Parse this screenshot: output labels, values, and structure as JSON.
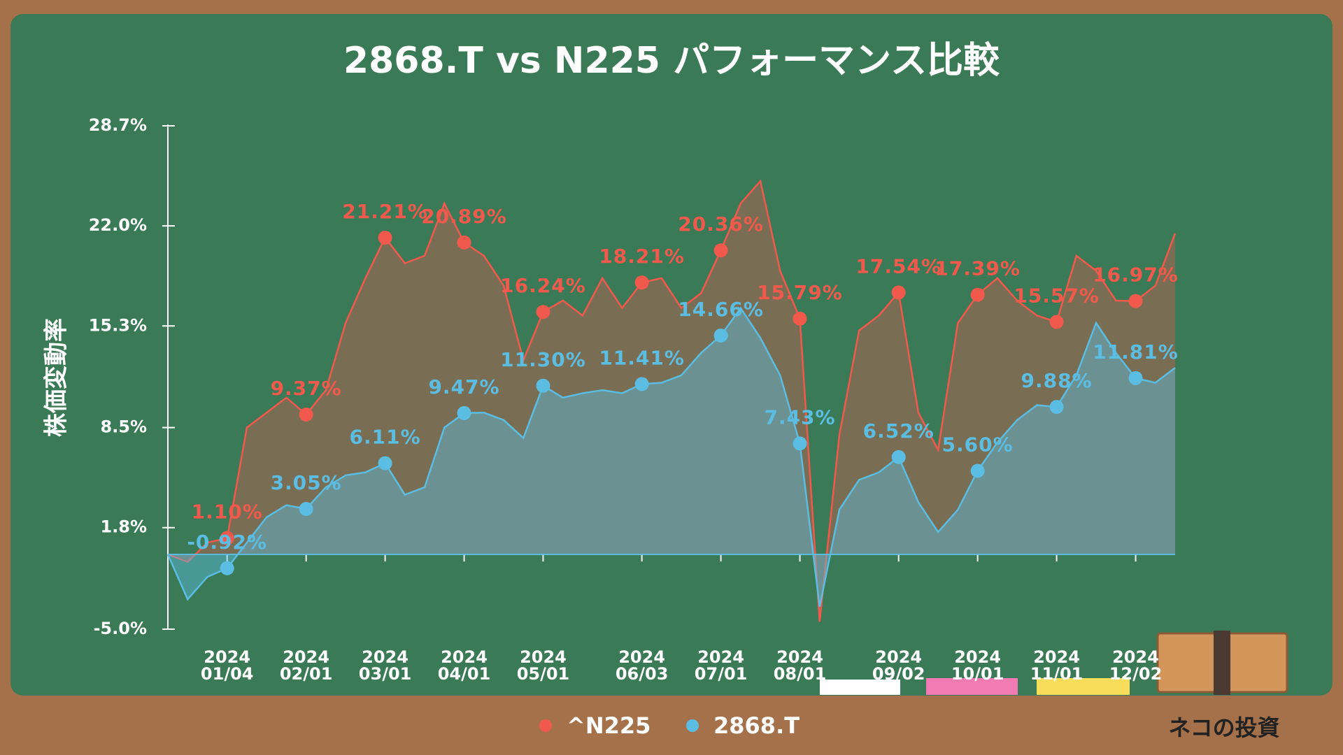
{
  "chart_data": {
    "type": "line",
    "title": "2868.T vs N225 パフォーマンス比較",
    "y_label": "株価変動率",
    "area": true,
    "categories": [
      null,
      null,
      null,
      "2024\n01/04",
      null,
      null,
      null,
      "2024\n02/01",
      null,
      null,
      null,
      "2024\n03/01",
      null,
      null,
      null,
      "2024\n04/01",
      null,
      null,
      null,
      "2024\n05/01",
      null,
      null,
      null,
      null,
      "2024\n06/03",
      null,
      null,
      null,
      "2024\n07/01",
      null,
      null,
      null,
      "2024\n08/01",
      null,
      null,
      null,
      null,
      "2024\n09/02",
      null,
      null,
      null,
      "2024\n10/01",
      null,
      null,
      null,
      "2024\n11/01",
      null,
      null,
      null,
      "2024\n12/02",
      null,
      null
    ],
    "series": [
      {
        "name": "^N225",
        "color": "#f2594d",
        "values": [
          0.0,
          -0.5,
          0.8,
          1.1,
          8.5,
          9.5,
          10.5,
          9.37,
          11.0,
          15.5,
          18.5,
          21.21,
          19.5,
          20.0,
          23.5,
          20.89,
          20.0,
          18.0,
          13.0,
          16.24,
          17.0,
          16.0,
          18.5,
          16.5,
          18.21,
          18.5,
          16.5,
          17.5,
          20.36,
          23.5,
          25.0,
          19.0,
          15.79,
          -4.5,
          8.0,
          15.0,
          16.0,
          17.54,
          9.5,
          7.0,
          15.5,
          17.39,
          18.5,
          17.0,
          16.0,
          15.57,
          20.0,
          19.0,
          17.0,
          16.97,
          18.0,
          21.5
        ],
        "value_labels": [
          null,
          null,
          null,
          "1.10%",
          null,
          null,
          null,
          "9.37%",
          null,
          null,
          null,
          "21.21%",
          null,
          null,
          null,
          "20.89%",
          null,
          null,
          null,
          "16.24%",
          null,
          null,
          null,
          null,
          "18.21%",
          null,
          null,
          null,
          "20.36%",
          null,
          null,
          null,
          "15.79%",
          null,
          null,
          null,
          null,
          "17.54%",
          null,
          null,
          null,
          "17.39%",
          null,
          null,
          null,
          "15.57%",
          null,
          null,
          null,
          "16.97%",
          null,
          null
        ]
      },
      {
        "name": "2868.T",
        "color": "#5bbde2",
        "values": [
          0.0,
          -3.0,
          -1.5,
          -0.92,
          0.8,
          2.5,
          3.3,
          3.05,
          4.5,
          5.3,
          5.5,
          6.11,
          4.0,
          4.5,
          8.5,
          9.47,
          9.5,
          9.0,
          7.8,
          11.3,
          10.5,
          10.8,
          11.0,
          10.8,
          11.41,
          11.5,
          12.0,
          13.5,
          14.66,
          16.5,
          14.5,
          12.0,
          7.43,
          -3.5,
          3.0,
          5.0,
          5.5,
          6.52,
          3.5,
          1.5,
          3.0,
          5.6,
          7.5,
          9.0,
          10.0,
          9.88,
          12.0,
          15.5,
          13.5,
          11.81,
          11.5,
          12.5
        ],
        "value_labels": [
          null,
          null,
          null,
          "-0.92%",
          null,
          null,
          null,
          "3.05%",
          null,
          null,
          null,
          "6.11%",
          null,
          null,
          null,
          "9.47%",
          null,
          null,
          null,
          "11.30%",
          null,
          null,
          null,
          null,
          "11.41%",
          null,
          null,
          null,
          "14.66%",
          null,
          null,
          null,
          "7.43%",
          null,
          null,
          null,
          null,
          "6.52%",
          null,
          null,
          null,
          "5.60%",
          null,
          null,
          null,
          "9.88%",
          null,
          null,
          null,
          "11.81%",
          null,
          null
        ]
      }
    ],
    "ylim": [
      -5.0,
      28.7
    ],
    "yticks": [
      {
        "value": -5.0,
        "label": "-5.0%"
      },
      {
        "value": 1.8,
        "label": "1.8%"
      },
      {
        "value": 8.5,
        "label": "8.5%"
      },
      {
        "value": 15.3,
        "label": "15.3%"
      },
      {
        "value": 22.0,
        "label": "22.0%"
      },
      {
        "value": 28.7,
        "label": "28.7%"
      }
    ]
  },
  "footer": {
    "brand": "ネコの投資"
  }
}
